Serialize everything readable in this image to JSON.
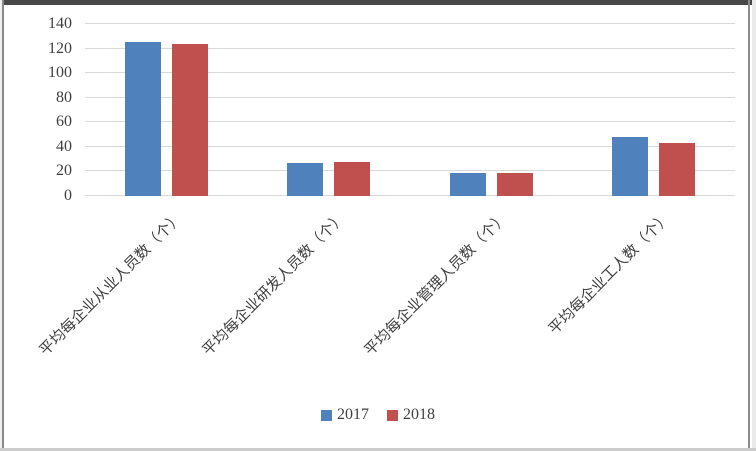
{
  "chart_data": {
    "type": "bar",
    "title": "",
    "xlabel": "",
    "ylabel": "",
    "categories": [
      "平均每企业从业人员数（个）",
      "平均每企业研发人员数（个）",
      "平均每企业管理人员数（个）",
      "平均每企业工人数（个）"
    ],
    "series": [
      {
        "name": "2017",
        "color": "#4F81BD",
        "values": [
          125,
          27,
          19,
          48
        ]
      },
      {
        "name": "2018",
        "color": "#C0504D",
        "values": [
          124,
          28,
          19,
          43
        ]
      }
    ],
    "ylim": [
      0,
      140
    ],
    "yticks": [
      0,
      20,
      40,
      60,
      80,
      100,
      120,
      140
    ],
    "grid": true,
    "legend_position": "bottom"
  },
  "colors": {
    "series_2017": "#4F81BD",
    "series_2018": "#C0504D",
    "gridline": "#d9d9d9",
    "axis_text": "#3f3f3f",
    "frame_dark": "#474747",
    "frame_side": "#8a8a8a",
    "frame_bottom": "#cccccc",
    "background": "#ffffff"
  }
}
